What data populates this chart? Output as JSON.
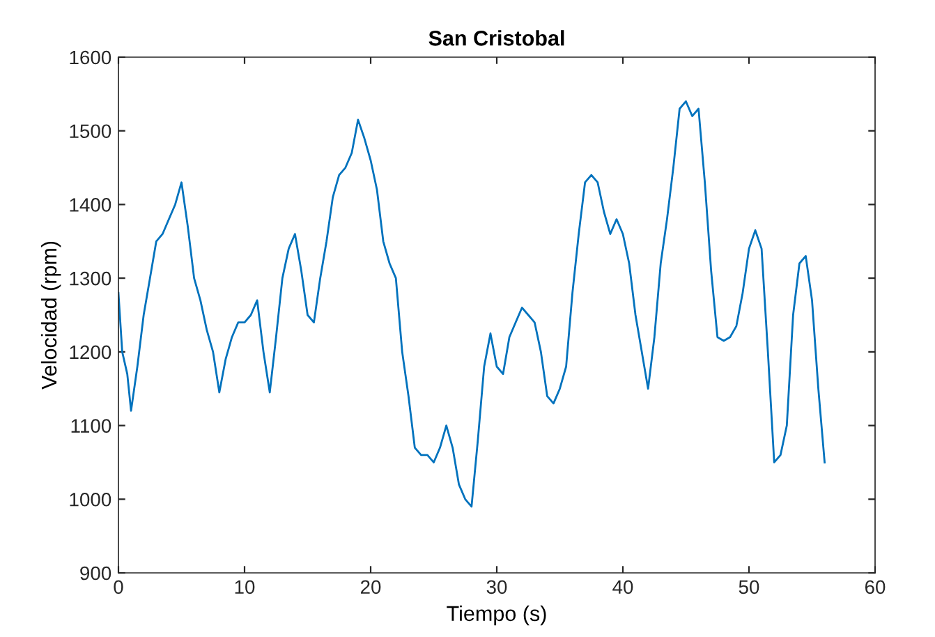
{
  "chart_data": {
    "type": "line",
    "title": "San Cristobal",
    "xlabel": "Tiempo (s)",
    "ylabel": "Velocidad (rpm)",
    "xlim": [
      0,
      60
    ],
    "xticks": [
      0,
      10,
      20,
      30,
      40,
      50,
      60
    ],
    "ylim": [
      900,
      1600
    ],
    "yticks": [
      900,
      1000,
      1100,
      1200,
      1300,
      1400,
      1500,
      1600
    ],
    "grid": false,
    "series": [
      {
        "color": "#0072bd",
        "x": [
          0,
          0.3,
          0.7,
          1.0,
          1.5,
          2.0,
          2.5,
          3.0,
          3.5,
          4.0,
          4.5,
          5.0,
          5.5,
          6.0,
          6.5,
          7.0,
          7.5,
          8.0,
          8.5,
          9.0,
          9.5,
          10.0,
          10.5,
          11.0,
          11.5,
          12.0,
          12.5,
          13.0,
          13.5,
          14.0,
          14.5,
          15.0,
          15.5,
          16.0,
          16.5,
          17.0,
          17.5,
          18.0,
          18.5,
          19.0,
          19.5,
          20.0,
          20.5,
          21.0,
          21.5,
          22.0,
          22.5,
          23.0,
          23.5,
          24.0,
          24.5,
          25.0,
          25.5,
          26.0,
          26.5,
          27.0,
          27.5,
          28.0,
          28.5,
          29.0,
          29.5,
          30.0,
          30.5,
          31.0,
          31.5,
          32.0,
          32.5,
          33.0,
          33.5,
          34.0,
          34.5,
          35.0,
          35.5,
          36.0,
          36.5,
          37.0,
          37.5,
          38.0,
          38.5,
          39.0,
          39.5,
          40.0,
          40.5,
          41.0,
          41.5,
          42.0,
          42.5,
          43.0,
          43.5,
          44.0,
          44.5,
          45.0,
          45.5,
          46.0,
          46.5,
          47.0,
          47.5,
          48.0,
          48.5,
          49.0,
          49.5,
          50.0,
          50.5,
          51.0,
          51.5,
          52.0,
          52.5,
          53.0,
          53.5,
          54.0,
          54.5,
          55.0,
          55.5,
          56.0
        ],
        "values": [
          1280,
          1200,
          1170,
          1120,
          1180,
          1250,
          1300,
          1350,
          1360,
          1380,
          1400,
          1430,
          1370,
          1300,
          1270,
          1230,
          1200,
          1145,
          1190,
          1220,
          1240,
          1240,
          1250,
          1270,
          1200,
          1145,
          1220,
          1300,
          1340,
          1360,
          1310,
          1250,
          1240,
          1300,
          1350,
          1410,
          1440,
          1450,
          1470,
          1515,
          1490,
          1460,
          1420,
          1350,
          1320,
          1300,
          1200,
          1140,
          1070,
          1060,
          1060,
          1050,
          1070,
          1100,
          1070,
          1020,
          1000,
          990,
          1080,
          1180,
          1225,
          1180,
          1170,
          1220,
          1240,
          1260,
          1250,
          1240,
          1200,
          1140,
          1130,
          1150,
          1180,
          1280,
          1360,
          1430,
          1440,
          1430,
          1390,
          1360,
          1380,
          1360,
          1320,
          1250,
          1200,
          1150,
          1220,
          1320,
          1380,
          1450,
          1530,
          1540,
          1520,
          1530,
          1430,
          1310,
          1220,
          1215,
          1220,
          1235,
          1280,
          1340,
          1365,
          1340,
          1200,
          1050,
          1060,
          1100,
          1250,
          1320,
          1330,
          1270,
          1150,
          1050
        ]
      }
    ]
  }
}
